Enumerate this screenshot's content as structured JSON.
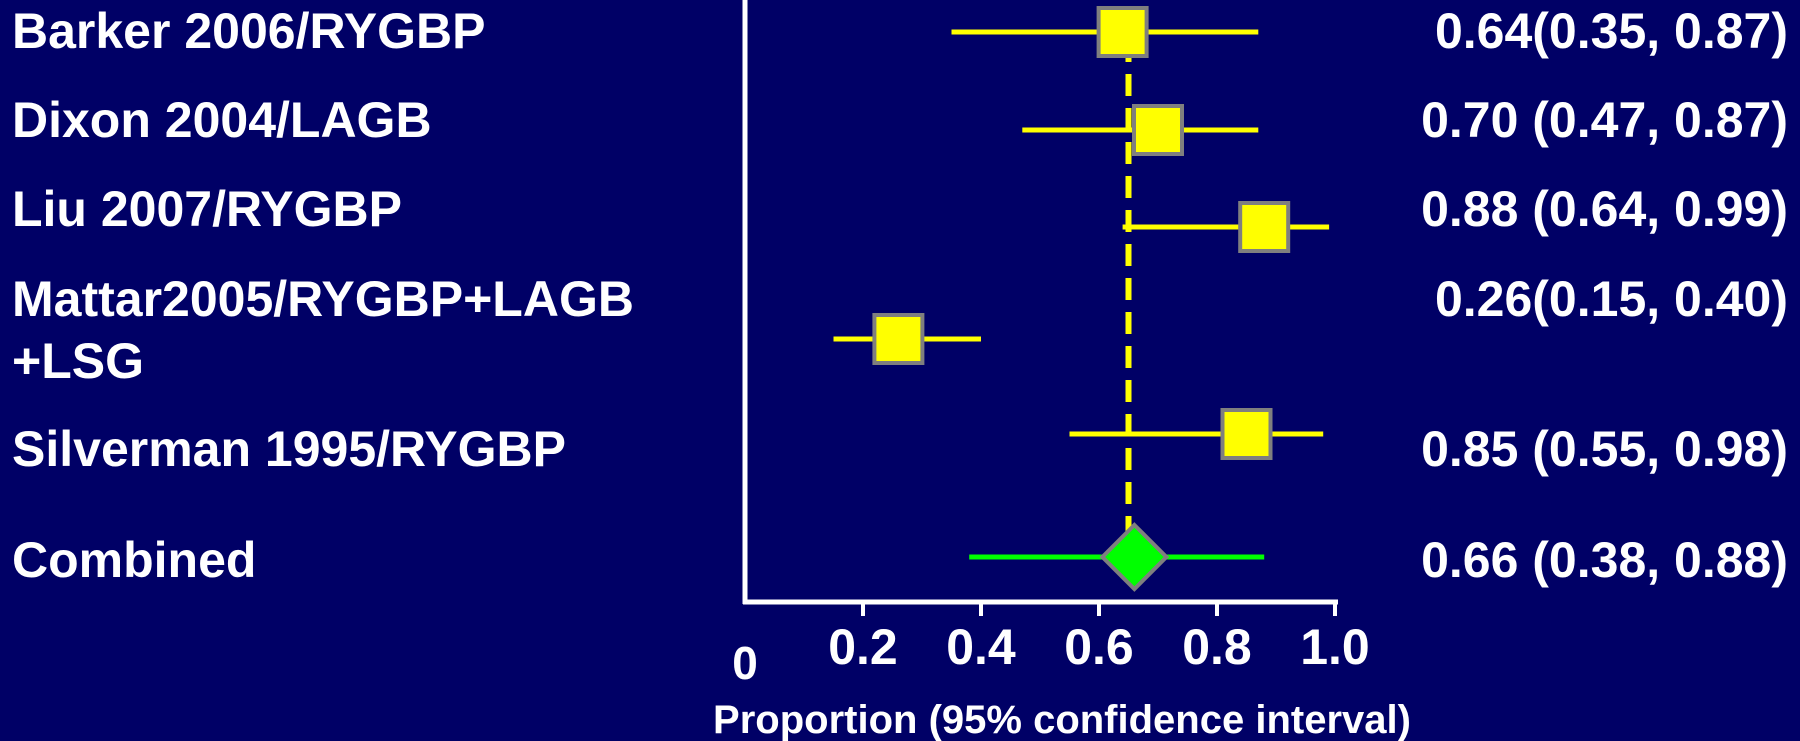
{
  "colors": {
    "background": "#000066",
    "text": "#ffffff",
    "axis": "#ffffff",
    "study_marker": "#ffff00",
    "study_marker_border": "#7f7f7f",
    "combined_marker": "#00ff00",
    "pooled_line": "#ffff00"
  },
  "chart_data": {
    "type": "forest",
    "xlabel": "Proportion (95% confidence interval)",
    "xlim": [
      0,
      1.0
    ],
    "xticks": [
      "0",
      "0.2",
      "0.4",
      "0.6",
      "0.8",
      "1.0"
    ],
    "xtick_values": [
      0,
      0.2,
      0.4,
      0.6,
      0.8,
      1.0
    ],
    "pooled_estimate": 0.65,
    "studies": [
      {
        "label": "Barker 2006/RYGBP",
        "estimate": 0.64,
        "lower": 0.35,
        "upper": 0.87,
        "text": "0.64(0.35, 0.87)",
        "marker": "square"
      },
      {
        "label": "Dixon 2004/LAGB",
        "estimate": 0.7,
        "lower": 0.47,
        "upper": 0.87,
        "text": "0.70 (0.47, 0.87)",
        "marker": "square"
      },
      {
        "label": "Liu 2007/RYGBP",
        "estimate": 0.88,
        "lower": 0.64,
        "upper": 0.99,
        "text": "0.88 (0.64, 0.99)",
        "marker": "square"
      },
      {
        "label": "Mattar2005/RYGBP+LAGB\n+LSG",
        "estimate": 0.26,
        "lower": 0.15,
        "upper": 0.4,
        "text": "0.26(0.15, 0.40)",
        "marker": "square"
      },
      {
        "label": "Silverman 1995/RYGBP",
        "estimate": 0.85,
        "lower": 0.55,
        "upper": 0.98,
        "text": "0.85 (0.55, 0.98)",
        "marker": "square"
      },
      {
        "label": "Combined",
        "estimate": 0.66,
        "lower": 0.38,
        "upper": 0.88,
        "text": "0.66 (0.38, 0.88)",
        "marker": "diamond"
      }
    ]
  }
}
